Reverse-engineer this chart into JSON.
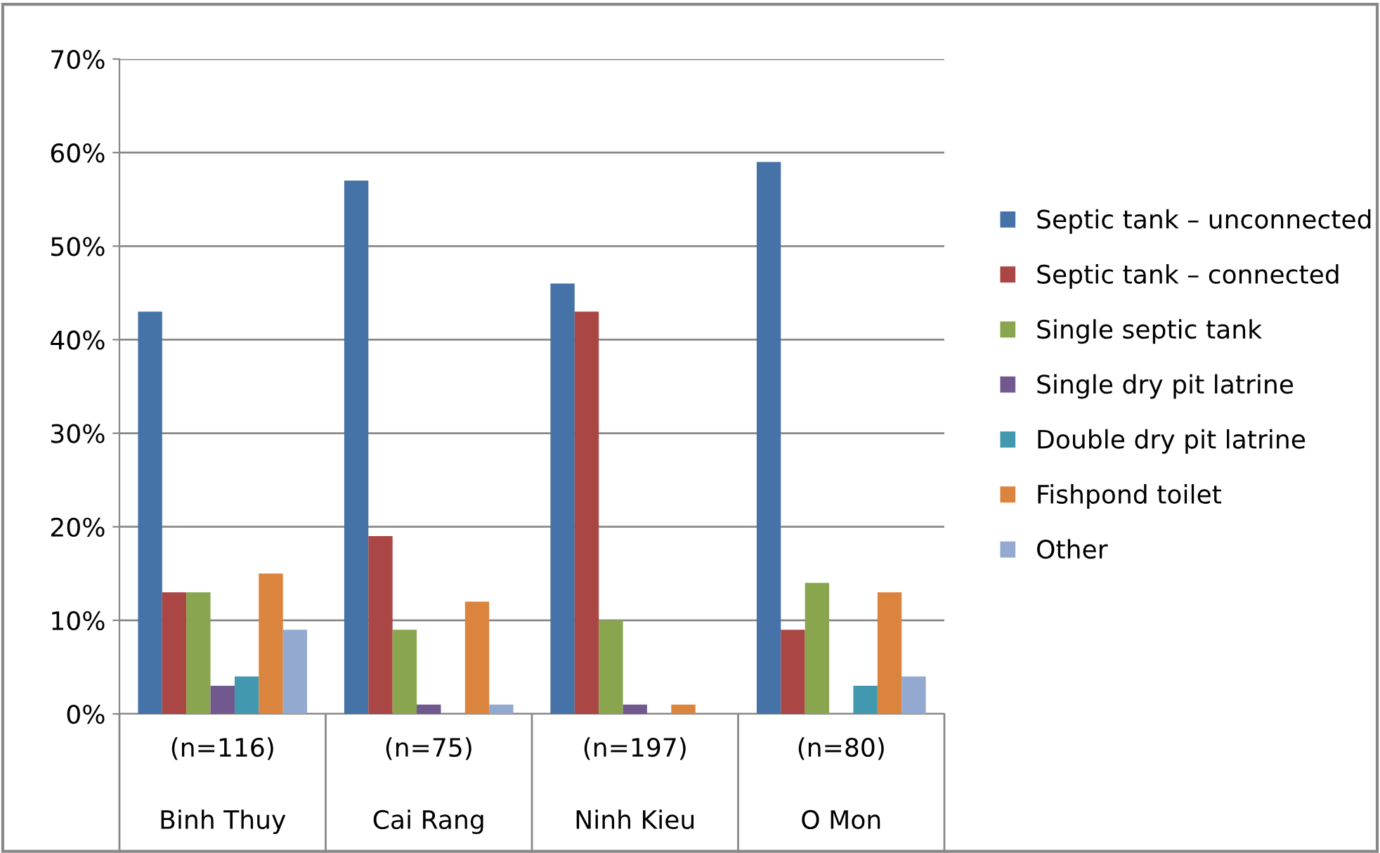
{
  "chart_data": {
    "type": "bar",
    "categories": [
      "(n=116)\nBinh Thuy",
      "(n=75)\nCai Rang",
      "(n=197)\nNinh Kieu",
      "(n=80)\nO Mon"
    ],
    "series": [
      {
        "name": "Septic tank – unconnected",
        "color": "#4572a7",
        "values": [
          43,
          57,
          46,
          59
        ]
      },
      {
        "name": "Septic tank – connected",
        "color": "#aa4643",
        "values": [
          13,
          19,
          43,
          9
        ]
      },
      {
        "name": "Single septic tank",
        "color": "#89a54e",
        "values": [
          13,
          9,
          10,
          14
        ]
      },
      {
        "name": "Single dry pit latrine",
        "color": "#71588f",
        "values": [
          3,
          1,
          1,
          0
        ]
      },
      {
        "name": "Double dry pit latrine",
        "color": "#4198af",
        "values": [
          4,
          0,
          0,
          3
        ]
      },
      {
        "name": "Fishpond toilet",
        "color": "#db843d",
        "values": [
          15,
          12,
          1,
          13
        ]
      },
      {
        "name": "Other",
        "color": "#93a9cf",
        "values": [
          9,
          1,
          0,
          4
        ]
      }
    ],
    "ylim": [
      0,
      70
    ],
    "yticks": [
      {
        "value": 0,
        "label": "0%"
      },
      {
        "value": 10,
        "label": "10%"
      },
      {
        "value": 20,
        "label": "20%"
      },
      {
        "value": 30,
        "label": "30%"
      },
      {
        "value": 40,
        "label": "40%"
      },
      {
        "value": 50,
        "label": "50%"
      },
      {
        "value": 60,
        "label": "60%"
      },
      {
        "value": 70,
        "label": "70%"
      }
    ],
    "grid": "y",
    "legend": "right"
  }
}
